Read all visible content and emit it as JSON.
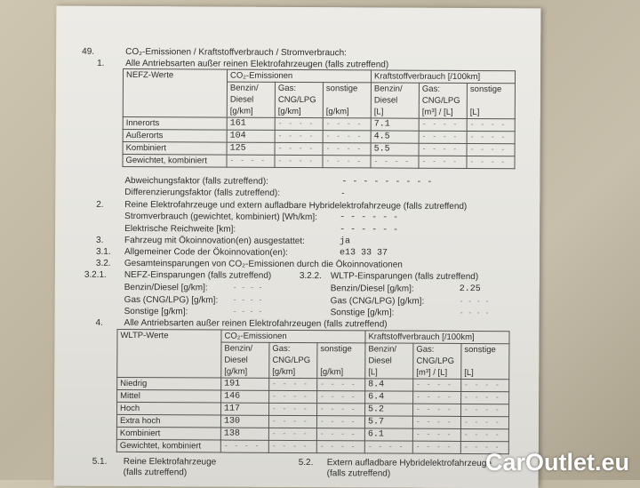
{
  "section49": {
    "num": "49.",
    "title": "CO₂-Emissionen / Kraftstoffverbrauch / Stromverbrauch:"
  },
  "s1": {
    "num": "1.",
    "title": "Alle Antriebsarten außer reinen Elektrofahrzeugen (falls zutreffend)"
  },
  "nefz_table": {
    "corner": "NEFZ-Werte",
    "group_co2": "CO₂-Emissionen",
    "group_fuel": "Kraftstoffverbrauch [/100km]",
    "sub1": [
      "Benzin/",
      "Gas:",
      "sonstige",
      "Benzin/",
      "Gas:",
      "sonstige"
    ],
    "sub2": [
      "Diesel",
      "CNG/LPG",
      "",
      "Diesel",
      "CNG/LPG",
      ""
    ],
    "units": [
      "[g/km]",
      "[g/km]",
      "[g/km]",
      "[L]",
      "[m³] / [L]",
      "[L]"
    ],
    "rows": [
      {
        "label": "Innerorts",
        "cells": [
          "161",
          "- - - -",
          "- - - -",
          "7.1",
          "- - - -",
          "- - - -"
        ]
      },
      {
        "label": "Außerorts",
        "cells": [
          "104",
          "- - - -",
          "- - - -",
          "4.5",
          "- - - -",
          "- - - -"
        ]
      },
      {
        "label": "Kombiniert",
        "cells": [
          "125",
          "- - - -",
          "- - - -",
          "5.5",
          "- - - -",
          "- - - -"
        ]
      },
      {
        "label": "Gewichtet, kombiniert",
        "cells": [
          "- - - -",
          "- - - -",
          "- - - -",
          "- - - -",
          "- - - -",
          "- - - -"
        ]
      }
    ]
  },
  "abw": {
    "label": "Abweichungsfaktor (falls zutreffend):",
    "value": "- - - - - - - - -"
  },
  "diff": {
    "label": "Differenzierungsfaktor (falls zutreffend):",
    "value": "-"
  },
  "s2": {
    "num": "2.",
    "title": "Reine Elektrofahrzeuge und extern aufladbare Hybridelektrofahrzeuge (falls zutreffend)"
  },
  "strom": {
    "label": "Stromverbrauch (gewichtet, kombiniert) [Wh/km]:",
    "value": "- - - - - -"
  },
  "reich": {
    "label": "Elektrische Reichweite [km]:",
    "value": "- - - - - -"
  },
  "s3": {
    "num": "3.",
    "label": "Fahrzeug mit Ökoinnovation(en) ausgestattet:",
    "value": "ja"
  },
  "s31": {
    "num": "3.1.",
    "label": "Allgemeiner Code der Ökoinnovation(en):",
    "value": "e13 33 37"
  },
  "s32": {
    "num": "3.2.",
    "title": "Gesamteinsparungen von CO₂-Emissionen durch die Ökoinnovationen"
  },
  "s321": {
    "num": "3.2.1.",
    "title": "NEFZ-Einsparungen (falls zutreffend)",
    "rows": [
      {
        "label": "Benzin/Diesel [g/km]:",
        "value": "- - - -"
      },
      {
        "label": "Gas (CNG/LPG) [g/km]:",
        "value": "- - - -"
      },
      {
        "label": "Sonstige [g/km]:",
        "value": "- - - -"
      }
    ]
  },
  "s322": {
    "num": "3.2.2.",
    "title": "WLTP-Einsparungen (falls zutreffend)",
    "rows": [
      {
        "label": "Benzin/Diesel [g/km]:",
        "value": "2.25"
      },
      {
        "label": "Gas (CNG/LPG) [g/km]:",
        "value": "- - - -"
      },
      {
        "label": "Sonstige [g/km]:",
        "value": "- - - -"
      }
    ]
  },
  "s4": {
    "num": "4.",
    "title": "Alle Antriebsarten außer reinen Elektrofahrzeugen (falls zutreffend)"
  },
  "wltp_table": {
    "corner": "WLTP-Werte",
    "rows": [
      {
        "label": "Niedrig",
        "cells": [
          "191",
          "- - - -",
          "- - - -",
          "8.4",
          "- - - -",
          "- - - -"
        ]
      },
      {
        "label": "Mittel",
        "cells": [
          "146",
          "- - - -",
          "- - - -",
          "6.4",
          "- - - -",
          "- - - -"
        ]
      },
      {
        "label": "Hoch",
        "cells": [
          "117",
          "- - - -",
          "- - - -",
          "5.2",
          "- - - -",
          "- - - -"
        ]
      },
      {
        "label": "Extra hoch",
        "cells": [
          "130",
          "- - - -",
          "- - - -",
          "5.7",
          "- - - -",
          "- - - -"
        ]
      },
      {
        "label": "Kombiniert",
        "cells": [
          "138",
          "- - - -",
          "- - - -",
          "6.1",
          "- - - -",
          "- - - -"
        ]
      },
      {
        "label": "Gewichtet, kombiniert",
        "cells": [
          "- - - -",
          "- - - -",
          "- - - -",
          "- - - -",
          "- - - -",
          "- - - -"
        ]
      }
    ]
  },
  "s51": {
    "num": "5.1.",
    "line1": "Reine Elektrofahrzeuge",
    "line2": "(falls zutreffend)"
  },
  "s52": {
    "num": "5.2.",
    "line1": "Extern aufladbare Hybridelektrofahrzeuge",
    "line2": "(falls zutreffend)"
  },
  "watermark": "CarOutlet.eu"
}
